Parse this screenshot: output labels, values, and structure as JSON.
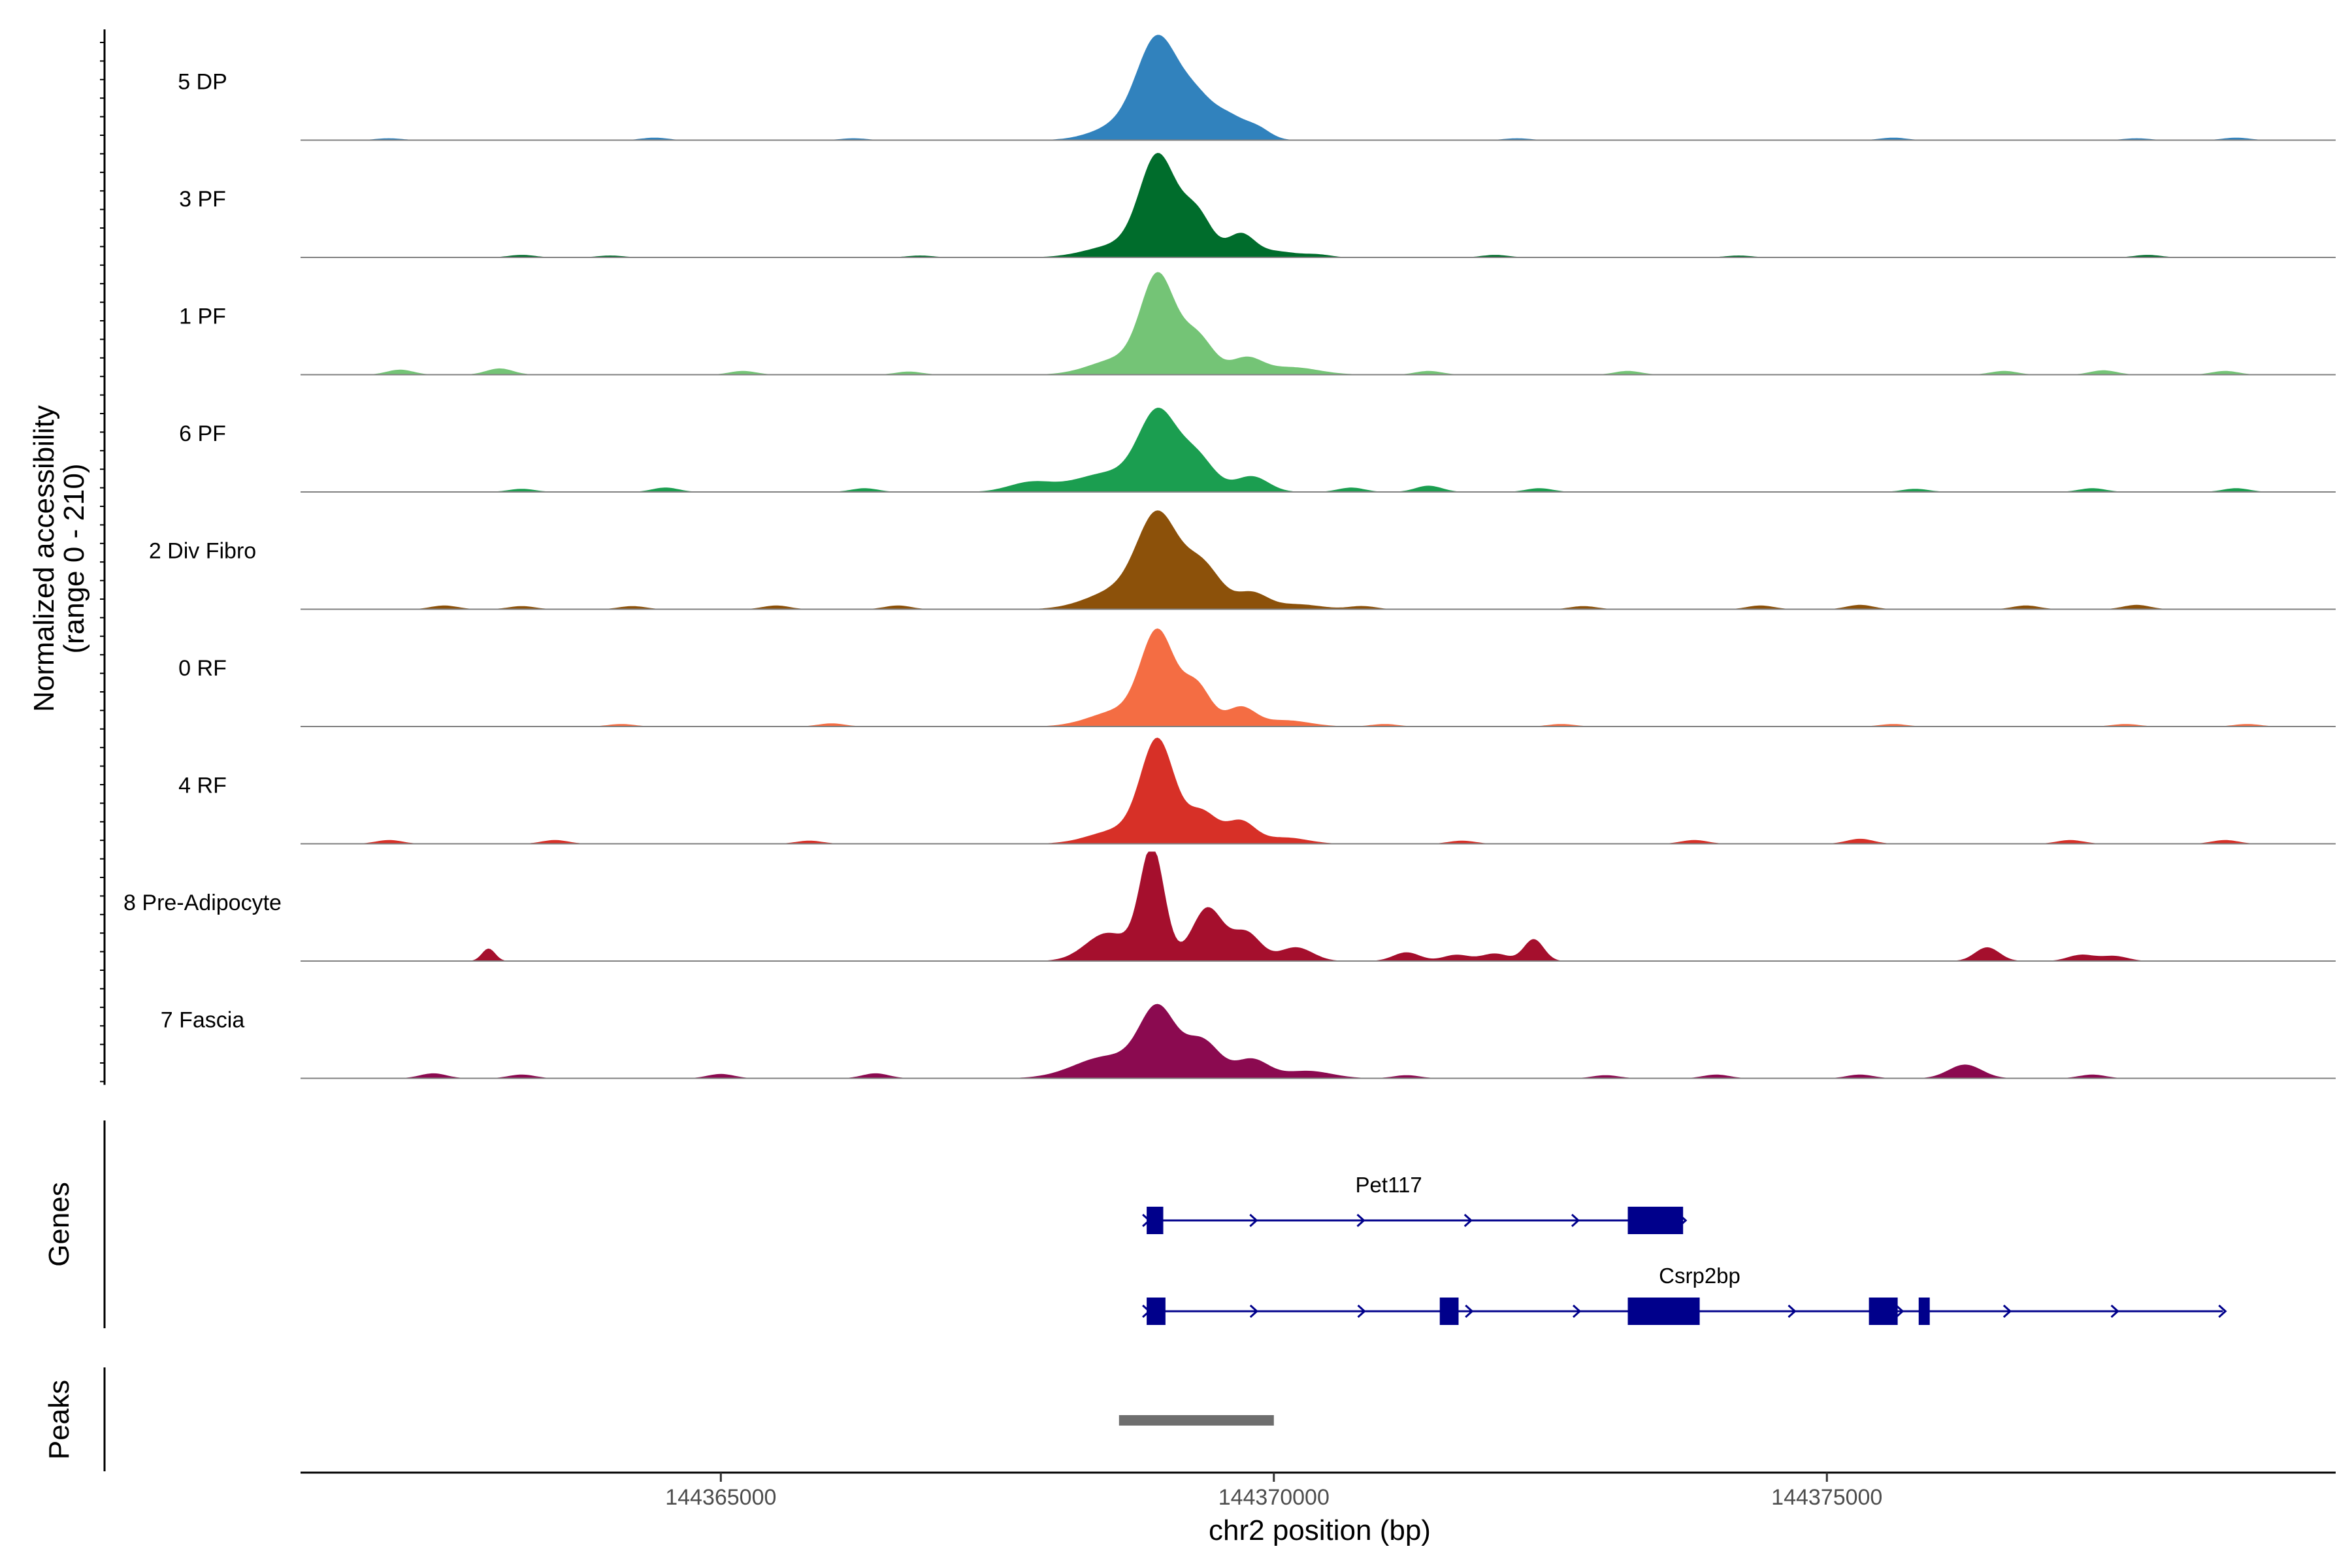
{
  "chart_data": {
    "type": "area",
    "title": "",
    "xlabel": "chr2 position (bp)",
    "ylabel": "Normalized accessibility",
    "ylabel_range": "(range 0 - 210)",
    "ylim": [
      0,
      210
    ],
    "region": [
      144361200,
      144379600
    ],
    "x_ticks": [
      144365000,
      144370000,
      144375000
    ],
    "x_tick_labels": [
      "144365000",
      "144370000",
      "144375000"
    ],
    "series": [
      {
        "name": "5 DP",
        "color": "#3182bd",
        "peaks": [
          [
            144368950,
            150,
            180
          ],
          [
            144369300,
            62,
            160
          ],
          [
            144369600,
            32,
            140
          ],
          [
            144369850,
            18,
            120
          ],
          [
            144368650,
            25,
            260
          ]
        ],
        "noise": [
          [
            144362000,
            3
          ],
          [
            144364400,
            4
          ],
          [
            144366200,
            3
          ],
          [
            144372200,
            3
          ],
          [
            144375600,
            4
          ],
          [
            144377800,
            3
          ],
          [
            144378700,
            4
          ]
        ]
      },
      {
        "name": "3 PF",
        "color": "#006d2c",
        "peaks": [
          [
            144368950,
            155,
            160
          ],
          [
            144369300,
            70,
            140
          ],
          [
            144369700,
            35,
            120
          ],
          [
            144368600,
            20,
            280
          ],
          [
            144370000,
            10,
            200
          ]
        ],
        "noise": [
          [
            144363200,
            4
          ],
          [
            144364000,
            3
          ],
          [
            144366800,
            3
          ],
          [
            144370400,
            4
          ],
          [
            144372000,
            4
          ],
          [
            144374200,
            3
          ],
          [
            144377900,
            4
          ]
        ]
      },
      {
        "name": "1 PF",
        "color": "#74c476",
        "peaks": [
          [
            144368950,
            150,
            150
          ],
          [
            144369300,
            62,
            150
          ],
          [
            144369750,
            25,
            140
          ],
          [
            144368600,
            25,
            260
          ],
          [
            144370150,
            12,
            250
          ]
        ],
        "noise": [
          [
            144362100,
            8
          ],
          [
            144363000,
            10
          ],
          [
            144365200,
            6
          ],
          [
            144366700,
            5
          ],
          [
            144371400,
            6
          ],
          [
            144373200,
            6
          ],
          [
            144376600,
            6
          ],
          [
            144377500,
            7
          ],
          [
            144378600,
            6
          ]
        ]
      },
      {
        "name": "6 PF",
        "color": "#1b9e50",
        "peaks": [
          [
            144368950,
            120,
            170
          ],
          [
            144369300,
            55,
            160
          ],
          [
            144368500,
            30,
            300
          ],
          [
            144369800,
            25,
            150
          ],
          [
            144367800,
            15,
            200
          ]
        ],
        "noise": [
          [
            144363200,
            5
          ],
          [
            144364500,
            7
          ],
          [
            144366300,
            6
          ],
          [
            144370700,
            7
          ],
          [
            144371400,
            10
          ],
          [
            144372400,
            6
          ],
          [
            144375800,
            5
          ],
          [
            144377400,
            6
          ],
          [
            144378700,
            6
          ]
        ]
      },
      {
        "name": "2 Div Fibro",
        "color": "#8c510a",
        "peaks": [
          [
            144368950,
            140,
            180
          ],
          [
            144369350,
            70,
            170
          ],
          [
            144368600,
            30,
            280
          ],
          [
            144369800,
            25,
            140
          ],
          [
            144370200,
            8,
            220
          ]
        ],
        "noise": [
          [
            144362500,
            6
          ],
          [
            144363200,
            5
          ],
          [
            144364200,
            5
          ],
          [
            144365500,
            6
          ],
          [
            144366600,
            6
          ],
          [
            144370800,
            5
          ],
          [
            144372800,
            5
          ],
          [
            144374400,
            6
          ],
          [
            144375300,
            7
          ],
          [
            144376800,
            6
          ],
          [
            144377800,
            7
          ]
        ]
      },
      {
        "name": "0 RF",
        "color": "#f46d43",
        "peaks": [
          [
            144368950,
            145,
            150
          ],
          [
            144369300,
            65,
            130
          ],
          [
            144369700,
            30,
            130
          ],
          [
            144368600,
            25,
            260
          ],
          [
            144370100,
            10,
            220
          ]
        ],
        "noise": [
          [
            144364100,
            4
          ],
          [
            144366000,
            5
          ],
          [
            144371000,
            4
          ],
          [
            144372600,
            4
          ],
          [
            144375600,
            4
          ],
          [
            144377700,
            4
          ],
          [
            144378800,
            4
          ]
        ]
      },
      {
        "name": "4 RF",
        "color": "#d73027",
        "peaks": [
          [
            144368950,
            160,
            150
          ],
          [
            144369350,
            50,
            140
          ],
          [
            144369700,
            35,
            130
          ],
          [
            144368600,
            22,
            260
          ],
          [
            144370100,
            10,
            200
          ]
        ],
        "noise": [
          [
            144362000,
            6
          ],
          [
            144363500,
            6
          ],
          [
            144365800,
            5
          ],
          [
            144371700,
            5
          ],
          [
            144373800,
            6
          ],
          [
            144375300,
            8
          ],
          [
            144377200,
            6
          ],
          [
            144378600,
            6
          ]
        ]
      },
      {
        "name": "8 Pre-Adipocyte",
        "color": "#a50f2d",
        "peaks": [
          [
            144368900,
            180,
            110
          ],
          [
            144369400,
            85,
            140
          ],
          [
            144369750,
            45,
            130
          ],
          [
            144368500,
            45,
            200
          ],
          [
            144370200,
            22,
            150
          ],
          [
            144372350,
            35,
            90
          ],
          [
            144362900,
            20,
            60
          ],
          [
            144376450,
            22,
            110
          ]
        ],
        "noise": [
          [
            144371200,
            14
          ],
          [
            144371650,
            10
          ],
          [
            144372000,
            12
          ],
          [
            144377300,
            10
          ],
          [
            144377600,
            8
          ]
        ]
      },
      {
        "name": "7 Fascia",
        "color": "#8b0a50",
        "peaks": [
          [
            144368950,
            105,
            160
          ],
          [
            144369350,
            60,
            160
          ],
          [
            144368500,
            35,
            300
          ],
          [
            144369800,
            30,
            150
          ],
          [
            144370300,
            12,
            220
          ],
          [
            144376250,
            22,
            150
          ]
        ],
        "noise": [
          [
            144362400,
            8
          ],
          [
            144363200,
            6
          ],
          [
            144365000,
            7
          ],
          [
            144366400,
            8
          ],
          [
            144371200,
            5
          ],
          [
            144373000,
            5
          ],
          [
            144374000,
            6
          ],
          [
            144375300,
            6
          ],
          [
            144377400,
            6
          ]
        ]
      }
    ],
    "genes_title": "Genes",
    "genes": [
      {
        "name": "Pet117",
        "start": 144368850,
        "end": 144373700,
        "strand": "+",
        "exons": [
          [
            144368850,
            144369000
          ],
          [
            144373200,
            144373700
          ]
        ]
      },
      {
        "name": "Csrp2bp",
        "start": 144368850,
        "end": 144378580,
        "strand": "+",
        "exons": [
          [
            144368850,
            144369020
          ],
          [
            144371500,
            144371670
          ],
          [
            144373200,
            144373850
          ],
          [
            144375380,
            144375640
          ],
          [
            144375830,
            144375930
          ]
        ]
      }
    ],
    "peaks_title": "Peaks",
    "peak_regions": [
      [
        144368600,
        144370000
      ]
    ],
    "peak_color": "#6e6e6e",
    "gene_color": "#00008b"
  }
}
